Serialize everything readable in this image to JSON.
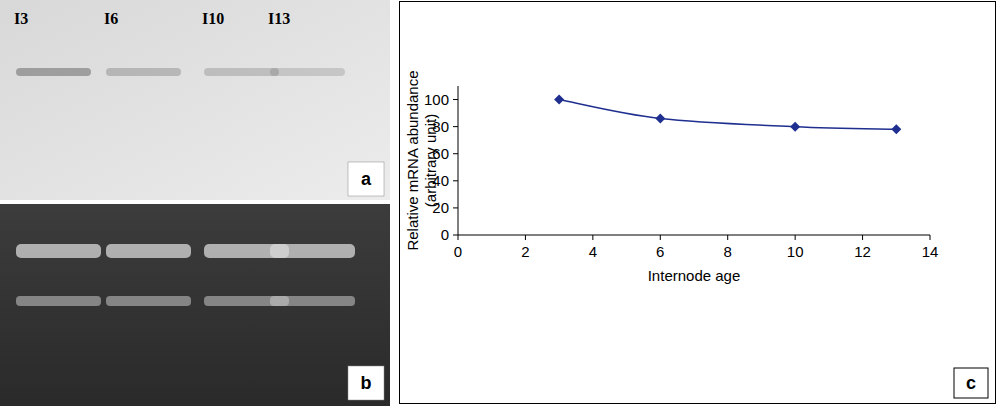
{
  "figure": {
    "panel_labels": [
      "a",
      "b",
      "c"
    ],
    "lanes": [
      "I3",
      "I6",
      "I10",
      "I13"
    ]
  },
  "chart_data": {
    "type": "line",
    "x": [
      3,
      6,
      10,
      13
    ],
    "values": [
      100,
      86,
      80,
      78
    ],
    "x_label": "Internode age",
    "y_label": [
      "Relative mRNA abundance",
      "(arbitrary unit)"
    ],
    "xlim": [
      0,
      14
    ],
    "xticks": [
      0,
      2,
      4,
      6,
      8,
      10,
      12,
      14
    ],
    "ylim": [
      0,
      110
    ],
    "yticks": [
      0,
      20,
      40,
      60,
      80,
      100
    ],
    "color": "#1f2f8f",
    "marker": "diamond",
    "line_style": "smooth",
    "grid": false
  }
}
